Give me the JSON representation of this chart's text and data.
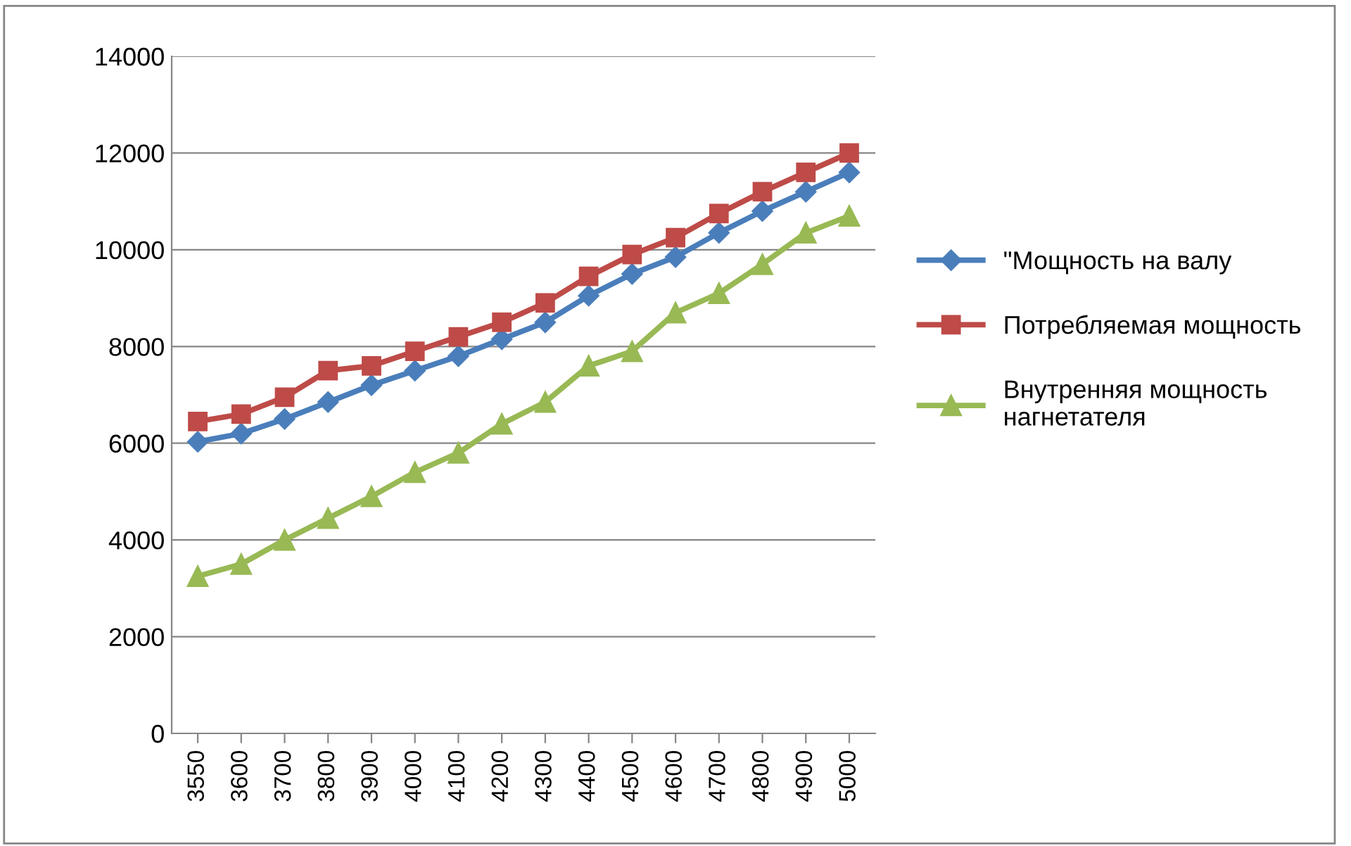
{
  "chart_data": {
    "type": "line",
    "categories": [
      "3550",
      "3600",
      "3700",
      "3800",
      "3900",
      "4000",
      "4100",
      "4200",
      "4300",
      "4400",
      "4500",
      "4600",
      "4700",
      "4800",
      "4900",
      "5000"
    ],
    "series": [
      {
        "name": "\"Мощность на валу",
        "color": "#4a7ebb",
        "marker": "diamond",
        "values": [
          6030,
          6200,
          6500,
          6850,
          7200,
          7500,
          7800,
          8150,
          8500,
          9050,
          9500,
          9850,
          10350,
          10800,
          11200,
          11600
        ]
      },
      {
        "name": "Потребляемая мощность",
        "color": "#be4b48",
        "marker": "square",
        "values": [
          6450,
          6600,
          6950,
          7500,
          7600,
          7900,
          8200,
          8500,
          8900,
          9450,
          9900,
          10250,
          10750,
          11200,
          11600,
          12000
        ]
      },
      {
        "name": "Внутренняя мощность нагнетателя",
        "color": "#98b954",
        "marker": "triangle",
        "values": [
          3250,
          3500,
          4000,
          4450,
          4900,
          5400,
          5800,
          6400,
          6850,
          7600,
          7900,
          8700,
          9100,
          9700,
          10350,
          10700
        ]
      }
    ],
    "ylim": [
      0,
      14000
    ],
    "yticks": [
      0,
      2000,
      4000,
      6000,
      8000,
      10000,
      12000,
      14000
    ],
    "grid": "y",
    "legend": "right",
    "line_style": "solid"
  }
}
